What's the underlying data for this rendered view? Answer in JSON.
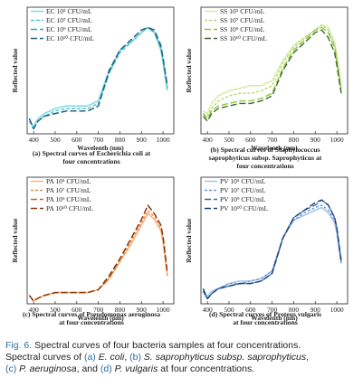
{
  "chart_data": [
    {
      "type": "line",
      "panel_label": "(a)",
      "caption_lines": [
        "(a) Spectral curves of Escherichia coli at",
        "four concentrations"
      ],
      "xlabel": "Wavelenth (nm)",
      "ylabel": "Reflected value",
      "xlim": [
        370,
        1050
      ],
      "ylim": [
        0,
        50
      ],
      "xticks": [
        400,
        500,
        600,
        700,
        800,
        900,
        1000
      ],
      "grid": false,
      "legend_position": "top-left",
      "series": [
        {
          "name": "EC 10⁵ CFU/mL",
          "color": "#85dce6",
          "dash": "",
          "x": [
            380,
            400,
            420,
            450,
            500,
            550,
            600,
            650,
            700,
            750,
            800,
            850,
            900,
            930,
            960,
            990,
            1000,
            1020
          ],
          "y": [
            5,
            3,
            6,
            8,
            10,
            11,
            11,
            11,
            13,
            25,
            33,
            36,
            40,
            42,
            40,
            33,
            28,
            17
          ]
        },
        {
          "name": "EC 10⁷ CFU/mL",
          "color": "#5cc4cf",
          "dash": "4,2",
          "x": [
            380,
            400,
            420,
            450,
            500,
            550,
            600,
            650,
            700,
            750,
            800,
            850,
            900,
            930,
            960,
            990,
            1000,
            1020
          ],
          "y": [
            5,
            2,
            5,
            7,
            9,
            10,
            10,
            10,
            12,
            24,
            32,
            36,
            40,
            42,
            40,
            34,
            29,
            18
          ]
        },
        {
          "name": "EC 10⁹ CFU/mL",
          "color": "#2aa9b6",
          "dash": "7,3",
          "x": [
            380,
            400,
            420,
            450,
            500,
            550,
            600,
            650,
            700,
            750,
            800,
            850,
            900,
            930,
            960,
            990,
            1000,
            1020
          ],
          "y": [
            6,
            2,
            5,
            7,
            8,
            9,
            9,
            9,
            11,
            24,
            33,
            37,
            41,
            42,
            40,
            34,
            30,
            18
          ]
        },
        {
          "name": "EC 10¹⁰ CFU/mL",
          "color": "#205e80",
          "dash": "7,3",
          "x": [
            380,
            400,
            420,
            450,
            500,
            550,
            600,
            650,
            700,
            750,
            800,
            850,
            900,
            930,
            960,
            990,
            1000,
            1020
          ],
          "y": [
            6,
            2,
            5,
            7,
            8,
            9,
            9,
            9,
            11,
            25,
            33,
            37,
            41,
            42,
            41,
            35,
            30,
            19
          ]
        }
      ]
    },
    {
      "type": "line",
      "panel_label": "(b)",
      "caption_lines": [
        "(b) Spectral curves of Staphylococcus",
        "saprophyticus subsp. Saprophyticus at",
        "four concentrations"
      ],
      "xlabel": "Wavelenth (nm)",
      "ylabel": "Reflected value",
      "xlim": [
        370,
        1050
      ],
      "ylim": [
        0,
        50
      ],
      "xticks": [
        400,
        500,
        600,
        700,
        800,
        900,
        1000
      ],
      "grid": false,
      "legend_position": "top-left",
      "series": [
        {
          "name": "SS 10⁵ CFU/mL",
          "color": "#d8ecaa",
          "dash": "",
          "x": [
            380,
            400,
            420,
            450,
            500,
            550,
            600,
            650,
            700,
            750,
            800,
            850,
            900,
            930,
            960,
            990,
            1000,
            1020
          ],
          "y": [
            9,
            8,
            12,
            15,
            17,
            18,
            19,
            19,
            21,
            29,
            35,
            38,
            41,
            43,
            42,
            36,
            31,
            19
          ]
        },
        {
          "name": "SS 10⁷ CFU/mL",
          "color": "#b8da6b",
          "dash": "3,2",
          "x": [
            380,
            400,
            420,
            450,
            500,
            550,
            600,
            650,
            700,
            750,
            800,
            850,
            900,
            930,
            960,
            990,
            1000,
            1020
          ],
          "y": [
            8,
            7,
            10,
            13,
            15,
            16,
            16,
            17,
            19,
            28,
            34,
            38,
            41,
            43,
            41,
            35,
            30,
            18
          ]
        },
        {
          "name": "SS 10⁹ CFU/mL",
          "color": "#8cc63f",
          "dash": "7,3",
          "x": [
            380,
            400,
            420,
            450,
            500,
            550,
            600,
            650,
            700,
            750,
            800,
            850,
            900,
            930,
            960,
            990,
            1000,
            1020
          ],
          "y": [
            8,
            6,
            9,
            11,
            12,
            13,
            13,
            14,
            16,
            26,
            33,
            37,
            41,
            42,
            40,
            34,
            29,
            17
          ]
        },
        {
          "name": "SS 10¹⁰ CFU/mL",
          "color": "#3d6b2c",
          "dash": "7,3",
          "x": [
            380,
            400,
            420,
            450,
            500,
            550,
            600,
            650,
            700,
            750,
            800,
            850,
            900,
            930,
            960,
            990,
            1000,
            1020
          ],
          "y": [
            7,
            5,
            8,
            10,
            11,
            12,
            12,
            13,
            15,
            25,
            32,
            36,
            40,
            41,
            38,
            32,
            27,
            16
          ]
        }
      ]
    },
    {
      "type": "line",
      "panel_label": "(c)",
      "caption_lines": [
        "(c) Spectral curves of Pseudomonas aeruginosa",
        "at four concentrations"
      ],
      "xlabel": "Wavelenth (nm)",
      "ylabel": "Reflected value",
      "xlim": [
        370,
        1050
      ],
      "ylim": [
        0,
        45
      ],
      "xticks": [
        400,
        500,
        600,
        700,
        800,
        900,
        1000
      ],
      "grid": false,
      "legend_position": "top-left",
      "series": [
        {
          "name": "PA 10⁵ CFU/mL",
          "color": "#f5b887",
          "dash": "",
          "x": [
            380,
            400,
            420,
            450,
            500,
            550,
            600,
            650,
            700,
            750,
            800,
            850,
            900,
            930,
            960,
            990,
            1000,
            1020
          ],
          "y": [
            3,
            1,
            2,
            3,
            4,
            4,
            4,
            4,
            5,
            9,
            15,
            21,
            28,
            32,
            30,
            26,
            22,
            10
          ]
        },
        {
          "name": "PA 10⁷ CFU/mL",
          "color": "#ef8f4a",
          "dash": "3,2",
          "x": [
            380,
            400,
            420,
            450,
            500,
            550,
            600,
            650,
            700,
            750,
            800,
            850,
            900,
            930,
            960,
            990,
            1000,
            1020
          ],
          "y": [
            3,
            1,
            2,
            3,
            4,
            4,
            4,
            4,
            5,
            9,
            15,
            22,
            29,
            33,
            31,
            27,
            23,
            10
          ]
        },
        {
          "name": "PA 10⁹ CFU/mL",
          "color": "#d9601a",
          "dash": "7,3",
          "x": [
            380,
            400,
            420,
            450,
            500,
            550,
            600,
            650,
            700,
            750,
            800,
            850,
            900,
            930,
            960,
            990,
            1000,
            1020
          ],
          "y": [
            3,
            1,
            2,
            3,
            4,
            4,
            4,
            4,
            5,
            9,
            16,
            23,
            30,
            35,
            32,
            28,
            24,
            11
          ]
        },
        {
          "name": "PA 10¹⁰ CFU/mL",
          "color": "#8a3a10",
          "dash": "7,3",
          "x": [
            380,
            400,
            420,
            450,
            500,
            550,
            600,
            650,
            700,
            750,
            800,
            850,
            900,
            930,
            960,
            990,
            1000,
            1020
          ],
          "y": [
            3,
            1,
            2,
            3,
            4,
            4,
            4,
            4,
            5,
            10,
            16,
            23,
            30,
            35,
            32,
            28,
            24,
            11
          ]
        }
      ]
    },
    {
      "type": "line",
      "panel_label": "(d)",
      "caption_lines": [
        "(d) Spectral curves of Proteus vulgaris",
        "at four concentrations"
      ],
      "xlabel": "Wavelenth (nm)",
      "ylabel": "Reflected value",
      "xlim": [
        370,
        1050
      ],
      "ylim": [
        0,
        50
      ],
      "xticks": [
        400,
        500,
        600,
        700,
        800,
        900,
        1000
      ],
      "grid": false,
      "legend_position": "top-left",
      "series": [
        {
          "name": "PV 10⁵ CFU/mL",
          "color": "#a9c6e8",
          "dash": "",
          "x": [
            380,
            400,
            420,
            450,
            500,
            550,
            600,
            650,
            700,
            750,
            800,
            850,
            900,
            930,
            960,
            990,
            1000,
            1020
          ],
          "y": [
            5,
            3,
            5,
            6,
            8,
            9,
            9,
            10,
            13,
            26,
            33,
            35,
            37,
            38,
            36,
            32,
            28,
            16
          ]
        },
        {
          "name": "PV 10⁷ CFU/mL",
          "color": "#6d9fd6",
          "dash": "3,2",
          "x": [
            380,
            400,
            420,
            450,
            500,
            550,
            600,
            650,
            700,
            750,
            800,
            850,
            900,
            930,
            960,
            990,
            1000,
            1020
          ],
          "y": [
            5,
            2,
            4,
            6,
            8,
            8,
            9,
            10,
            13,
            26,
            33,
            36,
            38,
            39,
            37,
            33,
            29,
            16
          ]
        },
        {
          "name": "PV 10⁹ CFU/mL",
          "color": "#2f6bb8",
          "dash": "7,3",
          "x": [
            380,
            400,
            420,
            450,
            500,
            550,
            600,
            650,
            700,
            750,
            800,
            850,
            900,
            930,
            960,
            990,
            1000,
            1020
          ],
          "y": [
            5,
            2,
            4,
            6,
            7,
            8,
            8,
            9,
            12,
            26,
            34,
            37,
            39,
            41,
            39,
            34,
            30,
            17
          ]
        },
        {
          "name": "PV 10¹⁰ CFU/mL",
          "color": "#1d3f78",
          "dash": "7,3",
          "x": [
            380,
            400,
            420,
            450,
            500,
            550,
            600,
            650,
            700,
            750,
            800,
            850,
            900,
            930,
            960,
            990,
            1000,
            1020
          ],
          "y": [
            6,
            2,
            4,
            6,
            7,
            8,
            8,
            9,
            12,
            26,
            34,
            37,
            40,
            41,
            39,
            34,
            30,
            17
          ]
        }
      ]
    }
  ],
  "caption": {
    "lead": "Fig. 6.",
    "line1_rest": "Spectral curves of four bacteria samples at four concentrations.",
    "line2": [
      "Spectral curves of ",
      "(a)",
      " ",
      "E. coli",
      ", ",
      "(b)",
      " ",
      "S. saprophyticus subsp. saprophyticus",
      ","
    ],
    "line3": [
      "(c)",
      " ",
      "P. aeruginosa",
      ", and ",
      "(d)",
      " ",
      "P. vulgaris",
      " at four concentrations."
    ]
  }
}
